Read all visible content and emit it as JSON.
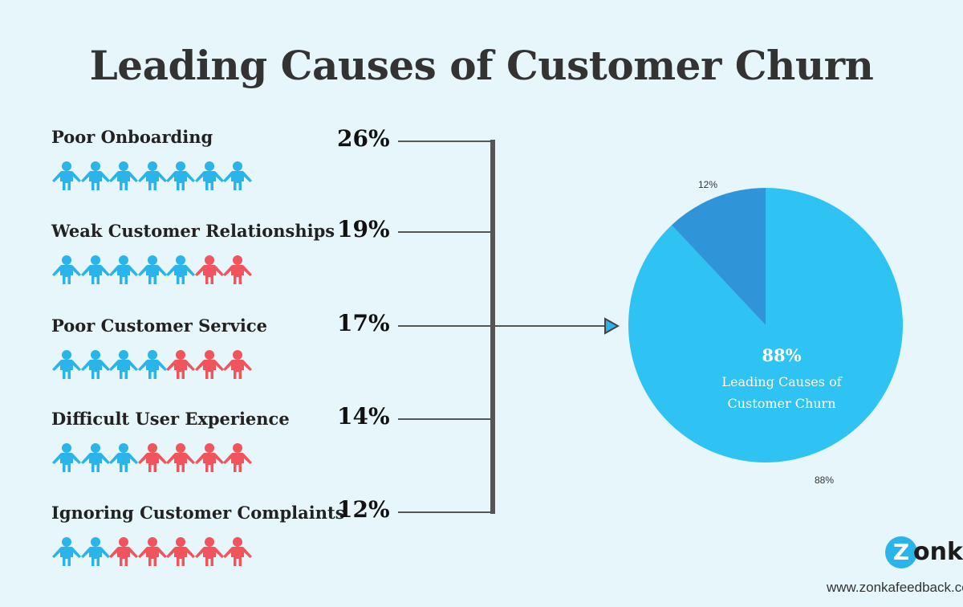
{
  "title": "Leading Causes of Customer Churn",
  "colors": {
    "background": "#e6f6fb",
    "blue": "#2ab4ea",
    "red": "#f0555e",
    "pie_main": "#2ec3f2",
    "pie_small": "#2f95d8",
    "connector": "#555555"
  },
  "chart_data": [
    {
      "type": "pictograph",
      "icons_per_row": 7,
      "categories": [
        "Poor Onboarding",
        "Weak Customer Relationships",
        "Poor Customer Service",
        "Difficult User Experience",
        "Ignoring Customer Complaints"
      ],
      "values": [
        26,
        19,
        17,
        14,
        12
      ],
      "value_labels": [
        "26%",
        "19%",
        "17%",
        "14%",
        "12%"
      ],
      "blue_icon_counts": [
        7,
        5,
        4,
        3,
        2
      ]
    },
    {
      "type": "pie",
      "slices": [
        {
          "value": 88,
          "label": "88%"
        },
        {
          "value": 12,
          "label": "12%"
        }
      ],
      "center_value": "88%",
      "center_label": "Leading Causes of Customer Churn"
    }
  ],
  "brand": {
    "logo_initial": "Z",
    "logo_rest": "onka",
    "url": "www.zonkafeedback.com"
  }
}
